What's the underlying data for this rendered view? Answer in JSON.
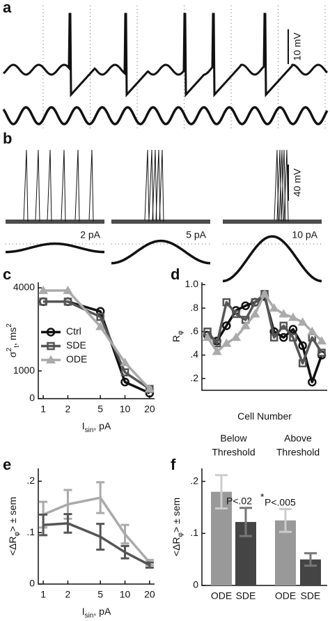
{
  "chart_data": [
    {
      "type": "trace",
      "panel_label": "a",
      "scale_label": "10 mV"
    },
    {
      "type": "trace",
      "panel_label": "b",
      "scale_label": "40 mV",
      "annotations": [
        "2 pA",
        "5 pA",
        "10 pA"
      ]
    },
    {
      "type": "line",
      "panel_label": "c",
      "xlabel": [
        {
          "text": "I"
        },
        {
          "text": "sin",
          "pos": "sub"
        },
        {
          "text": ", pA"
        }
      ],
      "ylabel": [
        {
          "text": "σ"
        },
        {
          "text": "2",
          "pos": "super"
        },
        {
          "text": "t",
          "pos": "sub"
        },
        {
          "text": ", ms"
        },
        {
          "text": "2",
          "pos": "super"
        }
      ],
      "x": [
        1,
        2,
        5,
        10,
        20
      ],
      "xscale": "log",
      "xlim": [
        0.87,
        23
      ],
      "xticks": [
        1,
        2,
        5,
        10,
        20
      ],
      "ylim": [
        0,
        4200
      ],
      "yticks": [
        0,
        1000,
        4000
      ],
      "legend": "center left",
      "series": [
        {
          "name": "Ctrl",
          "color": "#111111",
          "marker": "circle",
          "values": [
            3500,
            3500,
            3150,
            600,
            200
          ]
        },
        {
          "name": "SDE",
          "color": "#555555",
          "marker": "square",
          "values": [
            3500,
            3500,
            2950,
            950,
            350
          ]
        },
        {
          "name": "ODE",
          "color": "#aaaaaa",
          "marker": "triangle",
          "values": [
            3900,
            3900,
            2600,
            1300,
            350
          ]
        }
      ]
    },
    {
      "type": "line",
      "panel_label": "d",
      "xlabel": [
        {
          "text": "Cell Number"
        }
      ],
      "ylabel": [
        {
          "text": "R"
        },
        {
          "text": "φ",
          "pos": "sub"
        }
      ],
      "categories": [
        null,
        null,
        null,
        null,
        null,
        null,
        null,
        null,
        null,
        null,
        null,
        null,
        null
      ],
      "ylim": [
        0.1,
        1.02
      ],
      "yticks": [
        {
          "value": 0.2,
          "label": ".2"
        },
        {
          "value": 0.4,
          "label": ".4"
        },
        {
          "value": 0.6,
          "label": ".6"
        },
        {
          "value": 0.8,
          "label": ".8"
        },
        {
          "value": 1,
          "label": "1.0"
        }
      ],
      "series": [
        {
          "color": "#111111",
          "marker": "circle",
          "values": [
            0.57,
            0.52,
            0.65,
            0.78,
            0.82,
            0.85,
            0.9,
            0.6,
            0.55,
            0.62,
            0.48,
            0.17,
            0.4
          ]
        },
        {
          "color": "#555555",
          "marker": "square",
          "values": [
            0.6,
            0.5,
            0.85,
            0.75,
            0.7,
            0.85,
            0.92,
            0.55,
            0.65,
            0.55,
            0.33,
            0.55,
            0.42
          ]
        },
        {
          "color": "#aaaaaa",
          "marker": "triangle",
          "values": [
            0.55,
            0.43,
            0.5,
            0.55,
            0.65,
            0.75,
            0.92,
            0.8,
            0.75,
            0.72,
            0.68,
            0.6,
            0.52
          ]
        }
      ]
    },
    {
      "type": "line",
      "panel_label": "e",
      "xlabel": [
        {
          "text": "I"
        },
        {
          "text": "sin",
          "pos": "sub"
        },
        {
          "text": ", pA"
        }
      ],
      "ylabel": [
        {
          "text": "<ΔR"
        },
        {
          "text": "φ",
          "pos": "sub"
        },
        {
          "text": "> ± sem"
        }
      ],
      "x": [
        1,
        2,
        5,
        10,
        20
      ],
      "xscale": "log",
      "xlim": [
        0.87,
        23
      ],
      "xticks": [
        1,
        2,
        5,
        10,
        20
      ],
      "ylim": [
        0,
        0.225
      ],
      "yticks": [
        0,
        {
          "value": 0.1,
          "label": ".1"
        },
        {
          "value": 0.2,
          "label": ".2"
        }
      ],
      "series": [
        {
          "color": "#aaaaaa",
          "values": [
            0.135,
            0.155,
            0.168,
            0.097,
            0.042
          ],
          "errors": [
            0.025,
            0.028,
            0.03,
            0.018,
            0.005
          ]
        },
        {
          "color": "#555555",
          "values": [
            0.115,
            0.118,
            0.092,
            0.062,
            0.037
          ],
          "errors": [
            0.02,
            0.018,
            0.025,
            0.012,
            0.005
          ]
        }
      ]
    },
    {
      "type": "bar",
      "panel_label": "f",
      "ylabel": [
        {
          "text": "<ΔR"
        },
        {
          "text": "φ",
          "pos": "sub"
        },
        {
          "text": "> ± sem"
        }
      ],
      "groups": [
        [
          "Below",
          "Threshold"
        ],
        [
          "Above",
          "Threshold"
        ]
      ],
      "categories": [
        "ODE",
        "SDE",
        "ODE",
        "SDE"
      ],
      "values": [
        0.18,
        0.122,
        0.125,
        0.05
      ],
      "errors": [
        0.032,
        0.027,
        0.022,
        0.012
      ],
      "colors": [
        "#999999",
        "#444444",
        "#999999",
        "#444444"
      ],
      "ylim": [
        0,
        0.225
      ],
      "yticks": [
        0,
        {
          "value": 0.1,
          "label": ".1"
        },
        {
          "value": 0.2,
          "label": ".2"
        }
      ],
      "annotations": [
        "P<.02",
        "*",
        "P<.005"
      ]
    }
  ]
}
